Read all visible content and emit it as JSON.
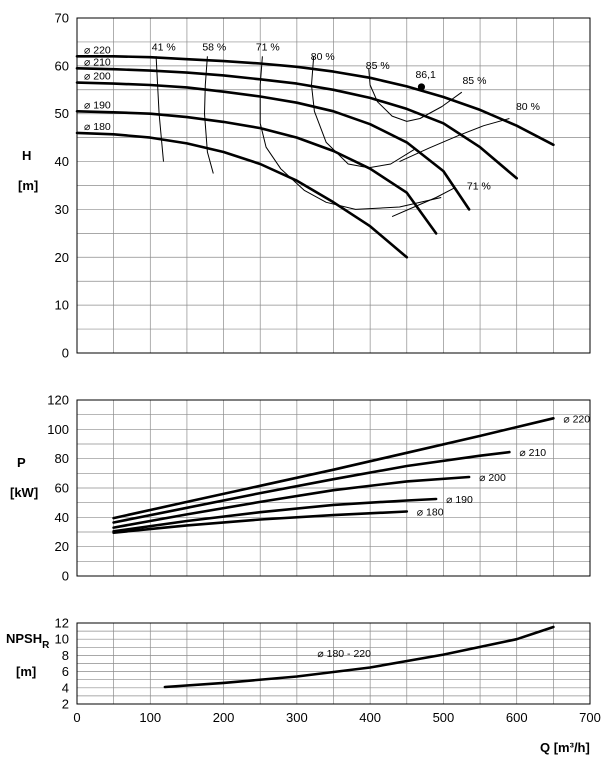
{
  "colors": {
    "line": "#000000",
    "grid": "#8c8c8c",
    "background": "#ffffff"
  },
  "x_axis": {
    "label": "Q [m³/h]",
    "range": [
      0,
      700
    ],
    "ticks": [
      "0",
      "100",
      "200",
      "300",
      "400",
      "500",
      "600",
      "700"
    ]
  },
  "chart_data": [
    {
      "type": "line",
      "name": "head",
      "ylabel_main": "H",
      "ylabel_unit": "[m]",
      "xlim": [
        0,
        700
      ],
      "ylim": [
        0,
        70
      ],
      "yticks": [
        "0",
        "10",
        "20",
        "30",
        "40",
        "50",
        "60",
        "70"
      ],
      "grid": true,
      "series": [
        {
          "name": "⌀ 220",
          "x": [
            0,
            50,
            100,
            150,
            200,
            250,
            300,
            350,
            400,
            450,
            500,
            550,
            600,
            650
          ],
          "y": [
            62,
            62,
            61.8,
            61.4,
            61,
            60.5,
            59.8,
            58.8,
            57.5,
            55.7,
            53.5,
            50.8,
            47.5,
            43.5
          ]
        },
        {
          "name": "⌀ 210",
          "x": [
            0,
            50,
            100,
            150,
            200,
            250,
            300,
            350,
            400,
            450,
            500,
            550,
            600
          ],
          "y": [
            59.5,
            59.3,
            59,
            58.6,
            58,
            57.2,
            56.3,
            55,
            53.3,
            51,
            48,
            43,
            36.5
          ]
        },
        {
          "name": "⌀ 200",
          "x": [
            0,
            50,
            100,
            150,
            200,
            250,
            300,
            350,
            400,
            450,
            500,
            535
          ],
          "y": [
            56.5,
            56.3,
            56,
            55.5,
            54.6,
            53.6,
            52.3,
            50.5,
            47.8,
            44,
            38,
            30
          ]
        },
        {
          "name": "⌀ 190",
          "x": [
            0,
            50,
            100,
            150,
            200,
            250,
            300,
            350,
            400,
            450,
            490
          ],
          "y": [
            50.5,
            50.3,
            50,
            49.3,
            48.3,
            47,
            45,
            42.2,
            38.5,
            33.5,
            25
          ]
        },
        {
          "name": "⌀ 180",
          "x": [
            0,
            50,
            100,
            150,
            200,
            250,
            300,
            350,
            400,
            450
          ],
          "y": [
            46,
            45.7,
            45,
            43.8,
            42,
            39.5,
            36,
            31.5,
            26.5,
            20
          ]
        }
      ],
      "efficiency_lines": [
        {
          "label": "41 %",
          "x": [
            108,
            110,
            112,
            118
          ],
          "y": [
            62,
            56,
            50,
            40
          ]
        },
        {
          "label": "58 %",
          "x": [
            178,
            175,
            174,
            178,
            186
          ],
          "y": [
            62,
            56,
            50,
            42,
            37.5
          ]
        },
        {
          "label": "71 %",
          "x": [
            253,
            250,
            250,
            258,
            278,
            310,
            340,
            380,
            440,
            497
          ],
          "y": [
            62,
            56,
            48,
            43,
            38.5,
            34,
            31.5,
            30,
            30.5,
            32.5
          ]
        },
        {
          "label": "80 %",
          "x": [
            323,
            320,
            324,
            340,
            370,
            398,
            428,
            460
          ],
          "y": [
            62,
            56,
            50.5,
            44,
            39.5,
            38.7,
            39.5,
            42.5
          ]
        },
        {
          "label": "85 %",
          "x": [
            398,
            400,
            410,
            430,
            450,
            468,
            498,
            525
          ],
          "y": [
            59.5,
            56,
            52.5,
            49.5,
            48.4,
            49,
            51.5,
            54.5
          ]
        },
        {
          "label": "80 %",
          "x": [
            440,
            480,
            520,
            555,
            590
          ],
          "y": [
            40,
            42.8,
            45.4,
            47.5,
            49
          ]
        },
        {
          "label": "71 %",
          "x": [
            430,
            460,
            490,
            515
          ],
          "y": [
            28.5,
            30.5,
            32.5,
            34.5
          ]
        }
      ],
      "bep": {
        "label": "86,1",
        "x": 470,
        "y": 55.6
      }
    },
    {
      "type": "line",
      "name": "power",
      "ylabel_main": "P",
      "ylabel_unit": "[kW]",
      "xlim": [
        0,
        700
      ],
      "ylim": [
        0,
        120
      ],
      "yticks": [
        "0",
        "20",
        "40",
        "60",
        "80",
        "100",
        "120"
      ],
      "grid": true,
      "series": [
        {
          "name": "⌀ 220",
          "x": [
            50,
            150,
            250,
            350,
            450,
            550,
            650
          ],
          "y": [
            39.5,
            50.5,
            61.5,
            72.5,
            84,
            95.5,
            107.5
          ]
        },
        {
          "name": "⌀ 210",
          "x": [
            50,
            150,
            250,
            350,
            450,
            550,
            590
          ],
          "y": [
            36.5,
            46.5,
            56.5,
            66,
            75,
            82,
            84.5
          ]
        },
        {
          "name": "⌀ 200",
          "x": [
            50,
            150,
            250,
            350,
            450,
            535
          ],
          "y": [
            33,
            42,
            50.5,
            58.5,
            64.5,
            67.5
          ]
        },
        {
          "name": "⌀ 190",
          "x": [
            50,
            150,
            250,
            350,
            450,
            490
          ],
          "y": [
            30.5,
            37.5,
            43.5,
            48.5,
            51.5,
            52.5
          ]
        },
        {
          "name": "⌀ 180",
          "x": [
            50,
            150,
            250,
            350,
            450
          ],
          "y": [
            29.5,
            34.5,
            38.5,
            41.5,
            44
          ]
        }
      ]
    },
    {
      "type": "line",
      "name": "npsh",
      "ylabel_main": "NPSH",
      "ylabel_sub": "R",
      "ylabel_unit": "[m]",
      "xlim": [
        0,
        700
      ],
      "ylim": [
        2,
        12
      ],
      "yticks": [
        "2",
        "4",
        "6",
        "8",
        "10",
        "12"
      ],
      "grid": true,
      "series": [
        {
          "name": "⌀ 180 - 220",
          "x": [
            120,
            200,
            300,
            400,
            500,
            600,
            650
          ],
          "y": [
            4.1,
            4.6,
            5.4,
            6.5,
            8.1,
            10,
            11.5
          ]
        }
      ]
    }
  ]
}
